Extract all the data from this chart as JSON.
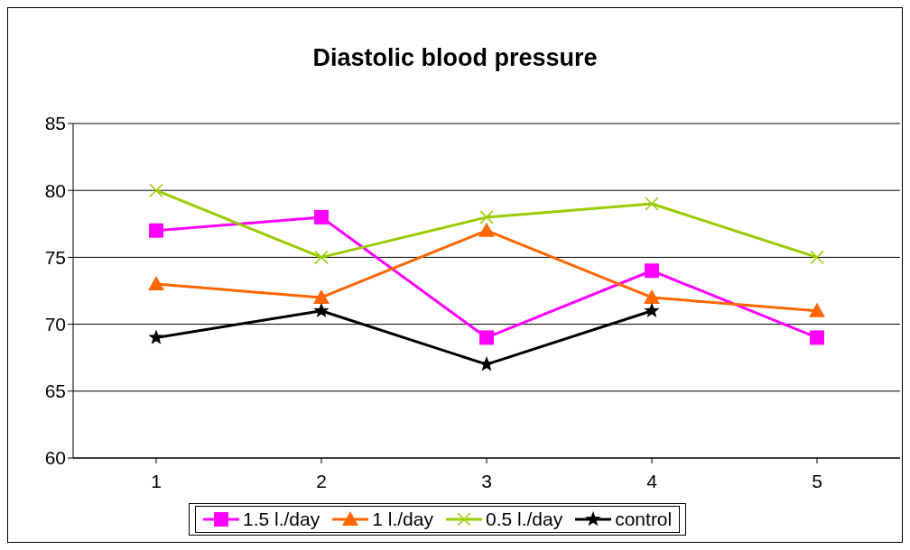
{
  "chart_data": {
    "type": "line",
    "title": "Diastolic blood pressure",
    "categories": [
      "1",
      "2",
      "3",
      "4",
      "5"
    ],
    "series": [
      {
        "name": "1.5 l./day",
        "color": "#ff00ff",
        "marker": "square",
        "values": [
          77,
          78,
          69,
          74,
          69
        ]
      },
      {
        "name": "1 l./day",
        "color": "#ff6600",
        "marker": "triangle",
        "values": [
          73,
          72,
          77,
          72,
          71
        ]
      },
      {
        "name": "0.5 l./day",
        "color": "#99cc00",
        "marker": "cross",
        "values": [
          80,
          75,
          78,
          79,
          75
        ]
      },
      {
        "name": "control",
        "color": "#000000",
        "marker": "star",
        "values": [
          69,
          71,
          67,
          71,
          null
        ]
      }
    ],
    "ylim": [
      60,
      85
    ],
    "yticks": [
      60,
      65,
      70,
      75,
      80,
      85
    ],
    "grid": "y",
    "legend": "bottom"
  }
}
